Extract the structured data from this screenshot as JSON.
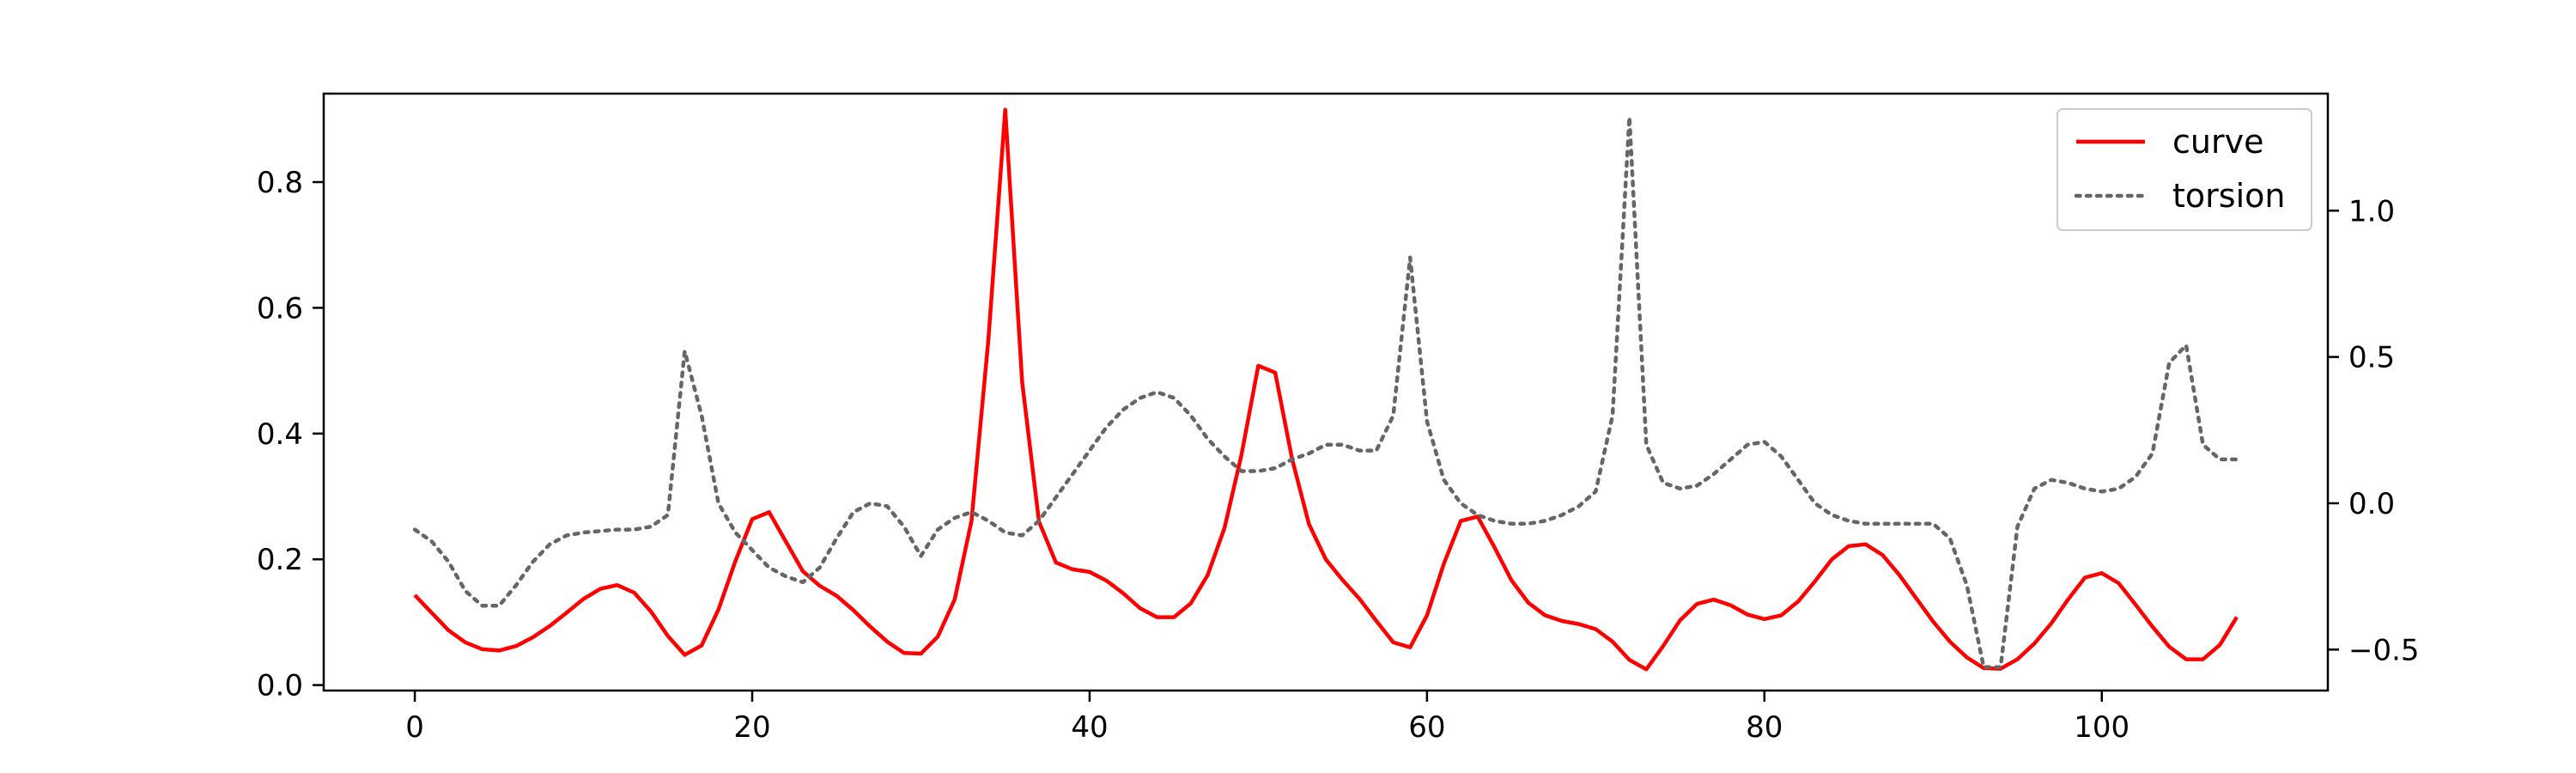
{
  "chart_data": {
    "type": "line",
    "title": "",
    "xlabel": "",
    "ylabel": "",
    "y2label": "",
    "xlim": [
      -5.4,
      113.4
    ],
    "ylim": [
      -0.0087,
      0.9407
    ],
    "y2lim": [
      -0.64,
      1.4
    ],
    "xticks": [
      0,
      20,
      40,
      60,
      80,
      100
    ],
    "yticks": [
      0.0,
      0.2,
      0.4,
      0.6,
      0.8
    ],
    "y2ticks": [
      -0.5,
      0.0,
      0.5,
      1.0
    ],
    "xtick_labels": [
      "0",
      "20",
      "40",
      "60",
      "80",
      "100"
    ],
    "ytick_labels": [
      "0.0",
      "0.2",
      "0.4",
      "0.6",
      "0.8"
    ],
    "y2tick_labels": [
      "−0.5",
      "0.0",
      "0.5",
      "1.0"
    ],
    "grid": false,
    "legend": {
      "placement": "upper-right",
      "entries": [
        "curve",
        "torsion"
      ]
    },
    "series": [
      {
        "name": "curve",
        "axis": "left",
        "color": "#ff0000",
        "style": "solid",
        "values": [
          0.143,
          0.115,
          0.087,
          0.068,
          0.057,
          0.055,
          0.062,
          0.076,
          0.094,
          0.115,
          0.137,
          0.153,
          0.159,
          0.147,
          0.117,
          0.078,
          0.048,
          0.063,
          0.12,
          0.197,
          0.264,
          0.275,
          0.228,
          0.181,
          0.158,
          0.142,
          0.119,
          0.093,
          0.069,
          0.051,
          0.05,
          0.077,
          0.136,
          0.261,
          0.55,
          0.915,
          0.482,
          0.26,
          0.195,
          0.184,
          0.18,
          0.166,
          0.146,
          0.122,
          0.108,
          0.108,
          0.13,
          0.175,
          0.25,
          0.366,
          0.508,
          0.497,
          0.36,
          0.256,
          0.2,
          0.167,
          0.137,
          0.102,
          0.068,
          0.06,
          0.111,
          0.193,
          0.261,
          0.268,
          0.219,
          0.167,
          0.131,
          0.111,
          0.102,
          0.097,
          0.089,
          0.069,
          0.04,
          0.025,
          0.062,
          0.103,
          0.129,
          0.136,
          0.127,
          0.112,
          0.105,
          0.111,
          0.133,
          0.165,
          0.2,
          0.221,
          0.224,
          0.207,
          0.175,
          0.138,
          0.101,
          0.069,
          0.044,
          0.027,
          0.026,
          0.041,
          0.066,
          0.098,
          0.136,
          0.171,
          0.178,
          0.162,
          0.128,
          0.093,
          0.061,
          0.041,
          0.041,
          0.064,
          0.108
        ]
      },
      {
        "name": "torsion",
        "axis": "right",
        "color": "#666666",
        "style": "dotted",
        "values": [
          -0.09,
          -0.13,
          -0.2,
          -0.3,
          -0.35,
          -0.35,
          -0.28,
          -0.2,
          -0.14,
          -0.11,
          -0.1,
          -0.095,
          -0.09,
          -0.09,
          -0.08,
          -0.04,
          0.52,
          0.3,
          0.0,
          -0.1,
          -0.16,
          -0.22,
          -0.25,
          -0.27,
          -0.22,
          -0.12,
          -0.03,
          0.0,
          -0.01,
          -0.08,
          -0.18,
          -0.09,
          -0.05,
          -0.03,
          -0.06,
          -0.1,
          -0.11,
          -0.06,
          0.02,
          0.1,
          0.18,
          0.26,
          0.32,
          0.36,
          0.38,
          0.36,
          0.3,
          0.22,
          0.16,
          0.11,
          0.11,
          0.12,
          0.15,
          0.17,
          0.2,
          0.2,
          0.18,
          0.18,
          0.3,
          0.84,
          0.28,
          0.08,
          0.0,
          -0.04,
          -0.06,
          -0.07,
          -0.07,
          -0.06,
          -0.04,
          -0.01,
          0.04,
          0.3,
          1.32,
          0.2,
          0.07,
          0.05,
          0.06,
          0.1,
          0.15,
          0.2,
          0.21,
          0.16,
          0.08,
          0.0,
          -0.04,
          -0.06,
          -0.07,
          -0.07,
          -0.07,
          -0.07,
          -0.07,
          -0.12,
          -0.28,
          -0.56,
          -0.56,
          -0.08,
          0.05,
          0.08,
          0.07,
          0.05,
          0.04,
          0.05,
          0.09,
          0.17,
          0.48,
          0.54,
          0.2,
          0.15,
          0.15
        ]
      }
    ]
  }
}
